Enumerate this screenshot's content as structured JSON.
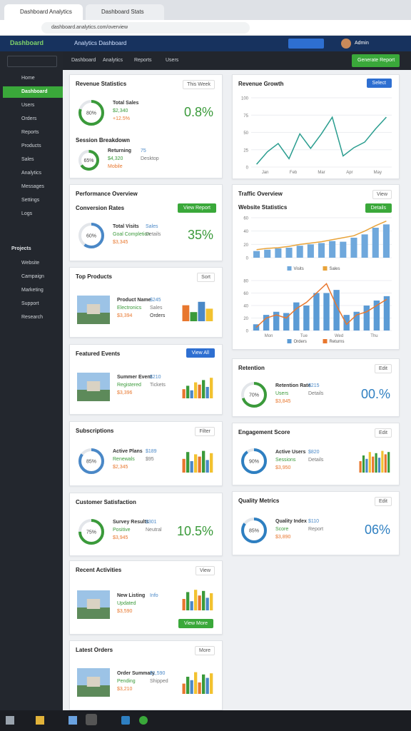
{
  "browser": {
    "tabs": [
      "Dashboard Analytics",
      "Dashboard Stats"
    ],
    "url": "dashboard.analytics.com/overview"
  },
  "header": {
    "brand": "Dashboard",
    "title": "Analytics Dashboard",
    "user": "Admin",
    "button": "Generate Report"
  },
  "nav": [
    "Dashboard",
    "Analytics",
    "Reports",
    "Users"
  ],
  "palette": [
    "#e8772e",
    "#3a9a3a",
    "#4a88c7",
    "#f2c230"
  ],
  "sidebar": {
    "items": [
      "Home",
      "Dashboard",
      "Users",
      "Orders",
      "Reports",
      "Products",
      "Sales",
      "Analytics",
      "Messages",
      "Settings",
      "Logs"
    ],
    "active": 1,
    "section": "Projects",
    "projects": [
      "Website",
      "Campaign",
      "Marketing",
      "Support",
      "Research"
    ]
  },
  "cards": [
    {
      "title": "Revenue Statistics",
      "control": "This Week",
      "rows": [
        {
          "donut": {
            "value": 80,
            "label": "80%",
            "color": "#3a9a3a"
          },
          "stats": [
            "Total Sales",
            "$2,340",
            "+12.5%"
          ],
          "big": "0.8%",
          "color": "#3a9a3a"
        },
        {
          "title": "Session Breakdown",
          "donut": {
            "value": 65,
            "label": "65%",
            "color": "#3a9a3a"
          },
          "stats": [
            "Returning",
            "$4,320",
            "Mobile",
            "75",
            "Desktop"
          ]
        }
      ]
    },
    {
      "title": "Performance Overview",
      "rows": [
        {
          "title": "Conversion Rates",
          "button": "View Report",
          "donut": {
            "value": 60,
            "label": "60%",
            "color": "#4a88c7"
          },
          "stats": [
            "Total Visits",
            "Goal Completion",
            "$3,345",
            "Sales",
            "Details"
          ],
          "big": "35%",
          "color": "#3a9a3a"
        }
      ]
    },
    {
      "title": "Top Products",
      "control": "Sort",
      "rows": [
        {
          "stats": [
            "Product Name",
            "Electronics",
            "$3,394",
            "$245",
            "Sales",
            "Orders"
          ],
          "bars": {
            "ylim": [
              0,
              100
            ],
            "values": [
              70,
              40,
              85,
              55
            ]
          }
        }
      ]
    },
    {
      "title": "Featured Events",
      "button": "View All",
      "rows": [
        {
          "stats": [
            "Summer Event",
            "Registered",
            "$3,396",
            "$210",
            "Tickets"
          ],
          "bars": {
            "ylim": [
              0,
              100
            ],
            "values": [
              40,
              55,
              35,
              70,
              60,
              80,
              50,
              90
            ]
          }
        }
      ]
    },
    {
      "title": "Subscriptions",
      "control": "Filter",
      "rows": [
        {
          "donut": {
            "value": 85,
            "label": "85%",
            "color": "#4a88c7"
          },
          "stats": [
            "Active Plans",
            "Renewals",
            "$2,345",
            "$189",
            "$95"
          ],
          "bars": {
            "ylim": [
              0,
              100
            ],
            "values": [
              60,
              90,
              50,
              80,
              70,
              95,
              55,
              85
            ]
          }
        }
      ]
    },
    {
      "title": "Customer Satisfaction",
      "rows": [
        {
          "donut": {
            "value": 75,
            "label": "75%",
            "color": "#3a9a3a"
          },
          "stats": [
            "Survey Results",
            "Positive",
            "$3,945",
            "$301",
            "Neutral"
          ],
          "big": "10.5%",
          "color": "#3a9a3a"
        }
      ]
    },
    {
      "title": "Recent Activities",
      "control": "View",
      "rows": [
        {
          "stats": [
            "New Listing",
            "Updated",
            "$3,590",
            "Info"
          ],
          "bars": {
            "ylim": [
              0,
              100
            ],
            "values": [
              50,
              80,
              40,
              90,
              65,
              85,
              55,
              75
            ]
          },
          "button": "View More"
        }
      ]
    },
    {
      "title": "Latest Orders",
      "control": "More",
      "rows": [
        {
          "stats": [
            "Order Summary",
            "Pending",
            "$3,210",
            "$1,590",
            "Shipped"
          ],
          "bars": {
            "ylim": [
              0,
              100
            ],
            "values": [
              45,
              75,
              60,
              95,
              50,
              85,
              70,
              90
            ]
          }
        }
      ]
    },
    {
      "title": "Revenue Growth",
      "button": "Select",
      "charts": [
        {
          "type": "line",
          "color": "#2a9d8f",
          "ylim": [
            0,
            100
          ],
          "yticks": [
            0,
            25,
            50,
            75,
            100
          ],
          "xlabels": [
            "Jan",
            "Feb",
            "Mar",
            "Apr",
            "May"
          ],
          "values": [
            4,
            22,
            34,
            12,
            48,
            27,
            48,
            72,
            16,
            28,
            36,
            55,
            72
          ]
        }
      ]
    },
    {
      "title": "Traffic Overview",
      "control": "View",
      "charts": [
        {
          "type": "bar-line",
          "title": "Website Statistics",
          "button": "Details",
          "legend": true,
          "ylim": [
            0,
            60
          ],
          "yticks": [
            0,
            20,
            40,
            60
          ],
          "series": [
            {
              "name": "Visits",
              "color": "#6fa8dc",
              "values": [
                10,
                12,
                14,
                15,
                18,
                20,
                22,
                25,
                24,
                30,
                35,
                45,
                50
              ]
            },
            {
              "name": "Sales",
              "color": "#e8a33a",
              "values": [
                12,
                14,
                15,
                17,
                20,
                22,
                24,
                27,
                30,
                33,
                40,
                48,
                55
              ]
            }
          ]
        },
        {
          "type": "bar-line",
          "legend": true,
          "ylim": [
            0,
            80
          ],
          "yticks": [
            0,
            20,
            40,
            60,
            80
          ],
          "xlabels": [
            "Mon",
            "Tue",
            "Wed",
            "Thu"
          ],
          "series": [
            {
              "name": "Orders",
              "color": "#5b9bd5",
              "values": [
                10,
                25,
                30,
                28,
                45,
                40,
                60,
                60,
                65,
                25,
                30,
                40,
                48,
                55
              ]
            },
            {
              "name": "Returns",
              "color": "#e8772e",
              "values": [
                5,
                20,
                25,
                20,
                35,
                45,
                60,
                75,
                40,
                10,
                25,
                30,
                40,
                50
              ]
            }
          ]
        }
      ]
    },
    {
      "title": "Retention",
      "control": "Edit",
      "rows": [
        {
          "donut": {
            "value": 70,
            "label": "70%",
            "color": "#3a9a3a"
          },
          "stats": [
            "Retention Rate",
            "Users",
            "$3,845",
            "$215",
            "Details"
          ],
          "big": "00.%",
          "color": "#2e7fc1"
        }
      ]
    },
    {
      "title": "Engagement Score",
      "control": "Edit",
      "rows": [
        {
          "donut": {
            "value": 90,
            "label": "90%",
            "color": "#2e7fc1"
          },
          "stats": [
            "Active Users",
            "Sessions",
            "$3,950",
            "$820",
            "Details"
          ],
          "bars": {
            "ylim": [
              0,
              100
            ],
            "values": [
              50,
              75,
              60,
              90,
              70,
              85,
              65,
              95,
              80,
              90
            ]
          }
        }
      ]
    },
    {
      "title": "Quality Metrics",
      "control": "Edit",
      "rows": [
        {
          "donut": {
            "value": 85,
            "label": "85%",
            "color": "#2e7fc1"
          },
          "stats": [
            "Quality Index",
            "Score",
            "$3,890",
            "$110",
            "Report"
          ],
          "big": "06%",
          "color": "#2e7fc1"
        }
      ]
    }
  ]
}
